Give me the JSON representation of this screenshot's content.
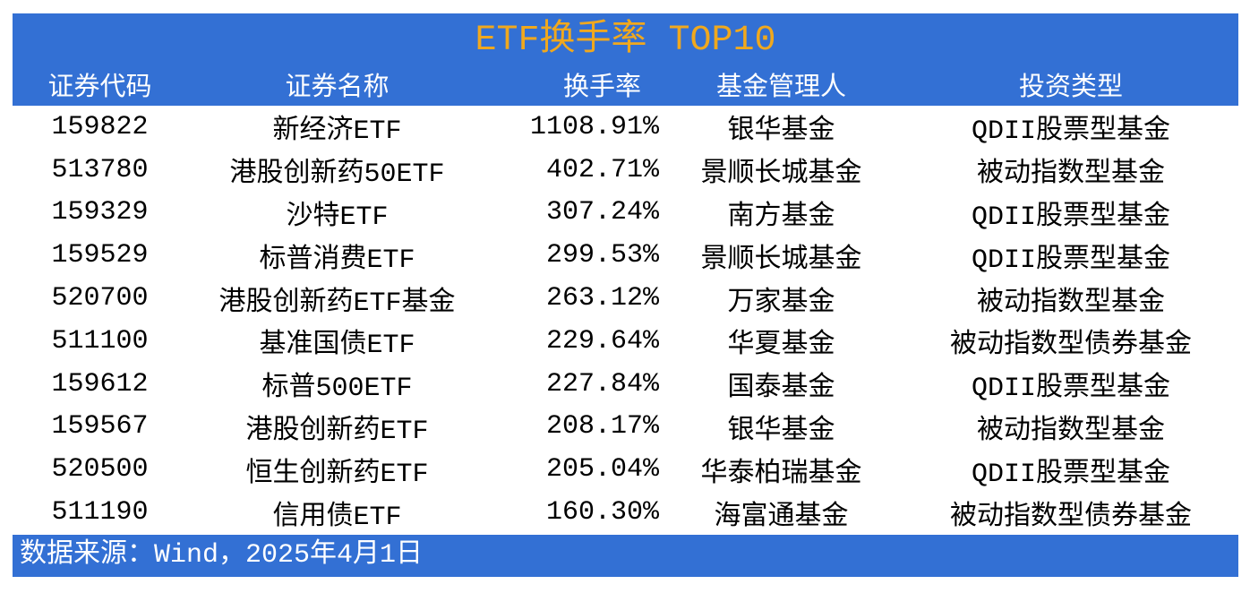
{
  "chart_data": {
    "type": "table",
    "title": "ETF换手率 TOP10",
    "columns": [
      "证券代码",
      "证券名称",
      "换手率",
      "基金管理人",
      "投资类型"
    ],
    "rows": [
      [
        "159822",
        "新经济ETF",
        "1108.91%",
        "银华基金",
        "QDII股票型基金"
      ],
      [
        "513780",
        "港股创新药50ETF",
        "402.71%",
        "景顺长城基金",
        "被动指数型基金"
      ],
      [
        "159329",
        "沙特ETF",
        "307.24%",
        "南方基金",
        "QDII股票型基金"
      ],
      [
        "159529",
        "标普消费ETF",
        "299.53%",
        "景顺长城基金",
        "QDII股票型基金"
      ],
      [
        "520700",
        "港股创新药ETF基金",
        "263.12%",
        "万家基金",
        "被动指数型基金"
      ],
      [
        "511100",
        "基准国债ETF",
        "229.64%",
        "华夏基金",
        "被动指数型债券基金"
      ],
      [
        "159612",
        "标普500ETF",
        "227.84%",
        "国泰基金",
        "QDII股票型基金"
      ],
      [
        "159567",
        "港股创新药ETF",
        "208.17%",
        "银华基金",
        "被动指数型基金"
      ],
      [
        "520500",
        "恒生创新药ETF",
        "205.04%",
        "华泰柏瑞基金",
        "QDII股票型基金"
      ],
      [
        "511190",
        "信用债ETF",
        "160.30%",
        "海富通基金",
        "被动指数型债券基金"
      ]
    ],
    "source_note": "数据来源：Wind，2025年4月1日",
    "layout": {
      "grid": "off",
      "turnover_align": "right",
      "other_align": "center"
    }
  },
  "colors": {
    "band_blue": "#3370D4",
    "title_gold": "#F0A81E",
    "header_text": "#FFFFFF",
    "body_text": "#000000"
  }
}
